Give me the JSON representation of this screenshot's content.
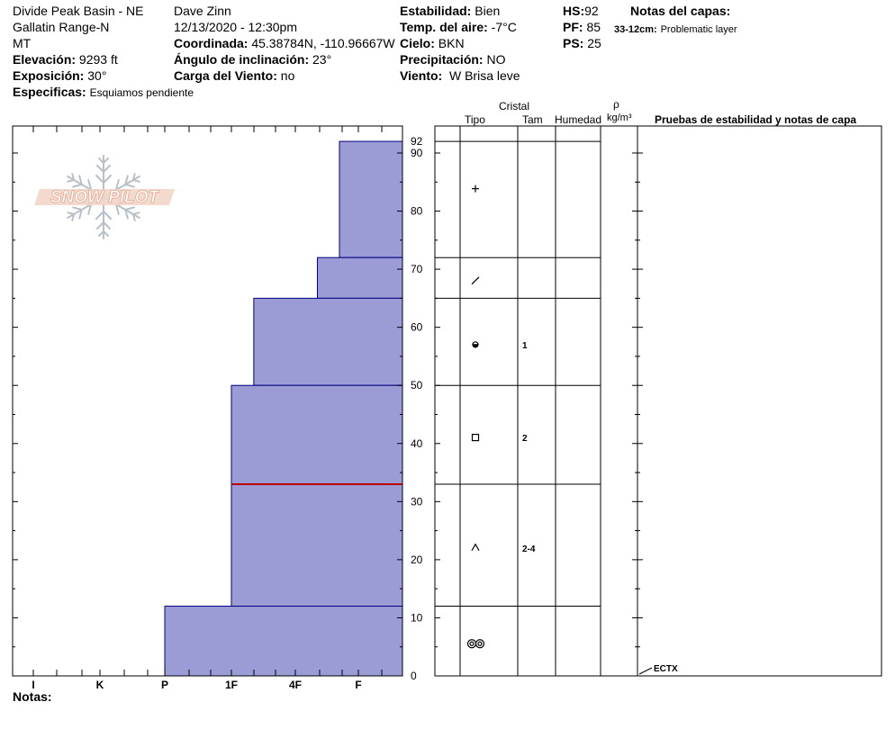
{
  "header": {
    "location": "Divide Peak Basin - NE",
    "range": "Gallatin Range-N",
    "state": "MT",
    "elevation_label": "Elevación:",
    "elevation_value": "9293 ft",
    "aspect_label": "Exposición:",
    "aspect_value": "30°",
    "specifics_label": "Especificas:",
    "specifics_value": "Esquiamos pendiente",
    "observer": "Dave Zinn",
    "datetime": "12/13/2020 - 12:30pm",
    "coord_label": "Coordinada:",
    "coord_value": "45.38784N, -110.96667W",
    "slope_label": "Ángulo de inclinación:",
    "slope_value": "23°",
    "wind_load_label": "Carga del Viento:",
    "wind_load_value": "no",
    "stability_label": "Estabilidad:",
    "stability_value": "Bien",
    "air_temp_label": "Temp. del aire:",
    "air_temp_value": "-7°C",
    "sky_label": "Cielo:",
    "sky_value": "BKN",
    "precip_label": "Precipitación:",
    "precip_value": "NO",
    "wind_label": "Viento:",
    "wind_value": "W Brisa leve",
    "hs_label": "HS:",
    "hs_value": "92",
    "pf_label": "PF:",
    "pf_value": "85",
    "ps_label": "PS:",
    "ps_value": "25",
    "layer_notes_label": "Notas del capas:",
    "layer_note_range": "33-12cm:",
    "layer_note_text": "Problematic layer"
  },
  "logo_text": "SNOW PILOT",
  "columns": {
    "crystal": "Cristal",
    "type": "Tipo",
    "size": "Tam",
    "moisture": "Humedad",
    "rho": "ρ",
    "density_unit": "kg/m³",
    "tests": "Pruebas de estabilidad y notas de capa"
  },
  "notes_label": "Notas:",
  "colors": {
    "layer_fill": "#9b9bd6",
    "layer_stroke": "#000080",
    "problem_line": "#c00000"
  },
  "chart_data": {
    "type": "bar",
    "orientation": "horizontal-step",
    "hardness_ticks": [
      "I",
      "K",
      "P",
      "1F",
      "4F",
      "F"
    ],
    "y_ticks": [
      0,
      10,
      20,
      30,
      40,
      50,
      60,
      70,
      80,
      90
    ],
    "ylim": [
      0,
      92
    ],
    "snow_height_label": "92",
    "layers": [
      {
        "top": 92,
        "bottom": 72,
        "hardness": "F-",
        "hardness_value": 5.7,
        "crystal_icon": "precipitation-particle-icon",
        "size": ""
      },
      {
        "top": 72,
        "bottom": 65,
        "hardness": "F",
        "hardness_value": 5.35,
        "crystal_icon": "decomposed-particle-icon",
        "size": ""
      },
      {
        "top": 65,
        "bottom": 50,
        "hardness": "4F-",
        "hardness_value": 4.35,
        "crystal_icon": "rounded-faceted-icon",
        "size": "1"
      },
      {
        "top": 50,
        "bottom": 33,
        "hardness": "4F",
        "hardness_value": 4.0,
        "crystal_icon": "faceted-crystal-icon",
        "size": "2"
      },
      {
        "top": 33,
        "bottom": 12,
        "hardness": "4F",
        "hardness_value": 4.0,
        "crystal_icon": "depth-hoar-icon",
        "size": "2-4"
      },
      {
        "top": 12,
        "bottom": 0,
        "hardness": "P",
        "hardness_value": 3.0,
        "crystal_icon": "melt-freeze-icon",
        "size": ""
      }
    ],
    "problem_layer_depth": 33,
    "stability_test": {
      "label": "ECTX",
      "depth": 0
    }
  }
}
